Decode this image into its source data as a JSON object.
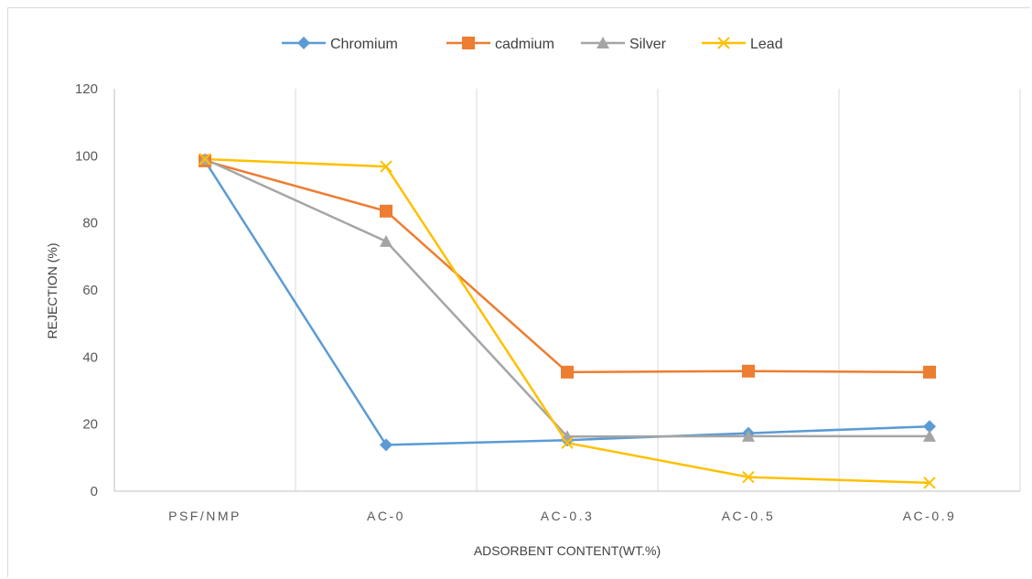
{
  "chart_data": {
    "type": "line",
    "categories": [
      "PSF/NMP",
      "AC-0",
      "AC-0.3",
      "AC-0.5",
      "AC-0.9"
    ],
    "series": [
      {
        "name": "Chromium",
        "color": "#5B9BD5",
        "marker": "diamond",
        "values": [
          98.5,
          13.8,
          15.2,
          17.3,
          19.3
        ]
      },
      {
        "name": "cadmium",
        "color": "#ED7D31",
        "marker": "square",
        "values": [
          98.5,
          83.5,
          35.5,
          35.8,
          35.5
        ]
      },
      {
        "name": "Silver",
        "color": "#A5A5A5",
        "marker": "triangle",
        "values": [
          99,
          74.5,
          16.3,
          16.4,
          16.4
        ]
      },
      {
        "name": "Lead",
        "color": "#FFC000",
        "marker": "x",
        "values": [
          99,
          96.8,
          14.4,
          4.2,
          2.5
        ]
      }
    ],
    "xlabel": "ADSORBENT CONTENT(WT.%)",
    "ylabel": "REJECTION (%)",
    "ylim": [
      0,
      120
    ],
    "yticks": [
      "0",
      "20",
      "40",
      "60",
      "80",
      "100",
      "120"
    ],
    "grid": "vertical category gridlines",
    "legend": "top-center"
  }
}
